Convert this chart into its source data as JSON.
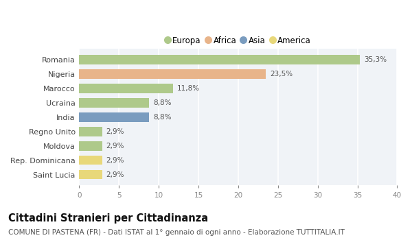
{
  "categories": [
    "Romania",
    "Nigeria",
    "Marocco",
    "Ucraina",
    "India",
    "Regno Unito",
    "Moldova",
    "Rep. Dominicana",
    "Saint Lucia"
  ],
  "values": [
    35.3,
    23.5,
    11.8,
    8.8,
    8.8,
    2.9,
    2.9,
    2.9,
    2.9
  ],
  "labels": [
    "35,3%",
    "23,5%",
    "11,8%",
    "8,8%",
    "8,8%",
    "2,9%",
    "2,9%",
    "2,9%",
    "2,9%"
  ],
  "colors": [
    "#aec98a",
    "#e8b48a",
    "#aec98a",
    "#aec98a",
    "#7a9cbf",
    "#aec98a",
    "#aec98a",
    "#e8d87a",
    "#e8d87a"
  ],
  "legend": [
    {
      "label": "Europa",
      "color": "#aec98a"
    },
    {
      "label": "Africa",
      "color": "#e8b48a"
    },
    {
      "label": "Asia",
      "color": "#7a9cbf"
    },
    {
      "label": "America",
      "color": "#e8d87a"
    }
  ],
  "xlim": [
    0,
    40
  ],
  "xticks": [
    0,
    5,
    10,
    15,
    20,
    25,
    30,
    35,
    40
  ],
  "title": "Cittadini Stranieri per Cittadinanza",
  "subtitle": "COMUNE DI PASTENA (FR) - Dati ISTAT al 1° gennaio di ogni anno - Elaborazione TUTTITALIA.IT",
  "title_fontsize": 10.5,
  "subtitle_fontsize": 7.5,
  "background_color": "#ffffff",
  "plot_bg_color": "#f0f3f7",
  "grid_color": "#ffffff",
  "bar_height": 0.65
}
